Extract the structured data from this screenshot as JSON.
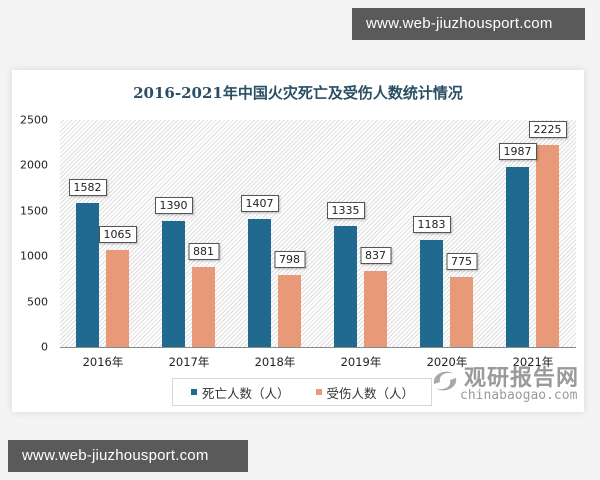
{
  "watermarks": {
    "top": "www.web-jiuzhousport.com",
    "bottom": "www.web-jiuzhousport.com"
  },
  "logo": {
    "cn": "观研报告网",
    "en": "chinabaogao.com",
    "icon": "swirl-logo-icon"
  },
  "legend": {
    "items": [
      {
        "label": "死亡人数（人）",
        "color": "#1f6a8e"
      },
      {
        "label": "受伤人数（人）",
        "color": "#e89a78"
      }
    ]
  },
  "chart_data": {
    "type": "bar",
    "title": "2016-2021年中国火灾死亡及受伤人数统计情况",
    "xlabel": "",
    "ylabel": "",
    "categories": [
      "2016年",
      "2017年",
      "2018年",
      "2019年",
      "2020年",
      "2021年"
    ],
    "series": [
      {
        "name": "死亡人数（人）",
        "color": "#1f6a8e",
        "values": [
          1582,
          1390,
          1407,
          1335,
          1183,
          1987
        ]
      },
      {
        "name": "受伤人数（人）",
        "color": "#e89a78",
        "values": [
          1065,
          881,
          798,
          837,
          775,
          2225
        ]
      }
    ],
    "ylim": [
      0,
      2500
    ],
    "yticks": [
      0,
      500,
      1000,
      1500,
      2000,
      2500
    ],
    "grid": false,
    "data_labels": true,
    "legend_position": "bottom"
  }
}
